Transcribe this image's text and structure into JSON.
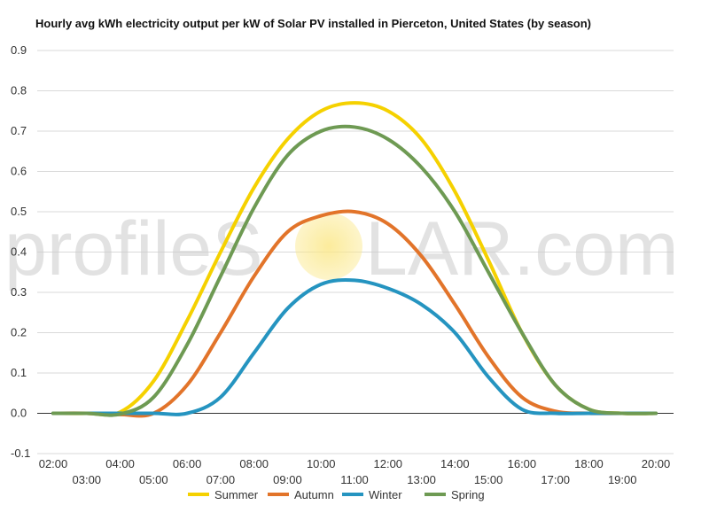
{
  "chart_data": {
    "type": "line",
    "title": "Hourly avg kWh electricity output per kW of Solar PV installed in Pierceton, United States (by season)",
    "watermark_left": "profileS",
    "watermark_right": "LAR.com",
    "x": [
      "02:00",
      "03:00",
      "04:00",
      "05:00",
      "06:00",
      "07:00",
      "08:00",
      "09:00",
      "10:00",
      "11:00",
      "12:00",
      "13:00",
      "14:00",
      "15:00",
      "16:00",
      "17:00",
      "18:00",
      "19:00",
      "20:00"
    ],
    "ylim": [
      -0.1,
      0.9
    ],
    "yticks": [
      "0.9",
      "0.8",
      "0.7",
      "0.6",
      "0.5",
      "0.4",
      "0.3",
      "0.2",
      "0.1",
      "0.0",
      "-0.1"
    ],
    "grid": true,
    "legend_position": "bottom",
    "series": [
      {
        "name": "Summer",
        "color": "#f5d100",
        "values": [
          0,
          0,
          0.003,
          0.08,
          0.23,
          0.4,
          0.56,
          0.68,
          0.75,
          0.77,
          0.75,
          0.68,
          0.55,
          0.38,
          0.2,
          0.07,
          0.01,
          0.0,
          0.0
        ]
      },
      {
        "name": "Autumn",
        "color": "#e2742a",
        "values": [
          0,
          0,
          -0.003,
          0.0,
          0.07,
          0.2,
          0.34,
          0.45,
          0.49,
          0.5,
          0.47,
          0.39,
          0.27,
          0.14,
          0.04,
          0.005,
          0.0,
          0.0,
          0.0
        ]
      },
      {
        "name": "Winter",
        "color": "#2594c0",
        "values": [
          0,
          0,
          0.0,
          0.0,
          0.0,
          0.04,
          0.15,
          0.26,
          0.32,
          0.33,
          0.31,
          0.27,
          0.2,
          0.09,
          0.01,
          0.0,
          0.0,
          0.0,
          0.0
        ]
      },
      {
        "name": "Spring",
        "color": "#6e9a53",
        "values": [
          0,
          0,
          -0.002,
          0.04,
          0.17,
          0.34,
          0.51,
          0.64,
          0.7,
          0.71,
          0.68,
          0.61,
          0.5,
          0.35,
          0.2,
          0.07,
          0.01,
          0.0,
          0.0
        ]
      }
    ]
  }
}
